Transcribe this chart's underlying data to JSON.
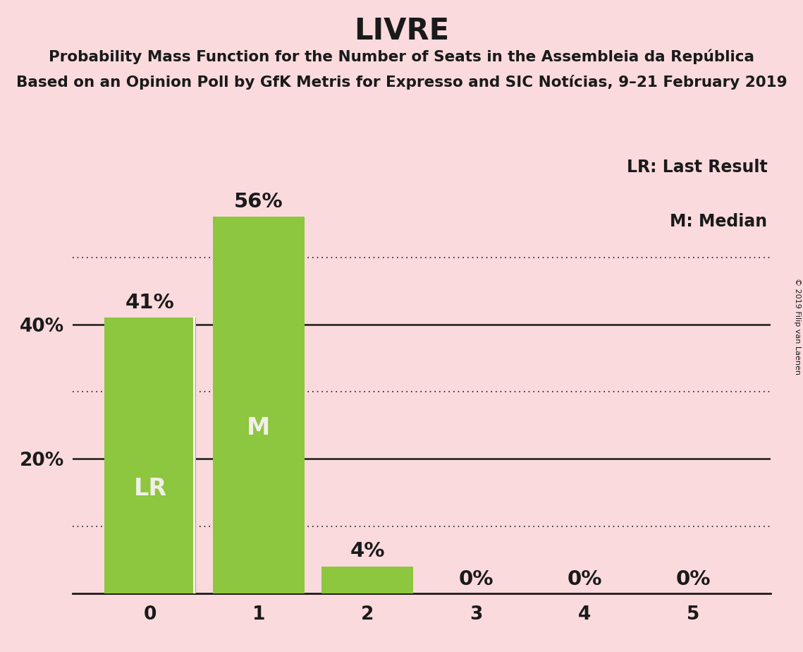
{
  "title": "LIVRE",
  "subtitle1": "Probability Mass Function for the Number of Seats in the Assembleia da República",
  "subtitle2": "Based on an Opinion Poll by GfK Metris for Expresso and SIC Notícias, 9–21 February 2019",
  "copyright": "© 2019 Filip van Laenen",
  "categories": [
    0,
    1,
    2,
    3,
    4,
    5
  ],
  "values": [
    0.41,
    0.56,
    0.04,
    0.0,
    0.0,
    0.0
  ],
  "bar_color": "#8dc63f",
  "background_color": "#fadadd",
  "text_color": "#1a1a1a",
  "bar_text_color_light": "#f0efe8",
  "bar_labels": [
    "41%",
    "56%",
    "4%",
    "0%",
    "0%",
    "0%"
  ],
  "lr_bar": 0,
  "median_bar": 1,
  "lr_label": "LR",
  "median_label": "M",
  "legend_lr": "LR: Last Result",
  "legend_m": "M: Median",
  "ylim": [
    0,
    0.65
  ],
  "solid_yticks": [
    0.2,
    0.4
  ],
  "dotted_yticks": [
    0.1,
    0.3,
    0.5
  ],
  "title_fontsize": 30,
  "subtitle_fontsize": 15.5,
  "axis_label_fontsize": 19,
  "bar_label_fontsize": 21,
  "inside_label_fontsize": 24,
  "legend_fontsize": 17
}
